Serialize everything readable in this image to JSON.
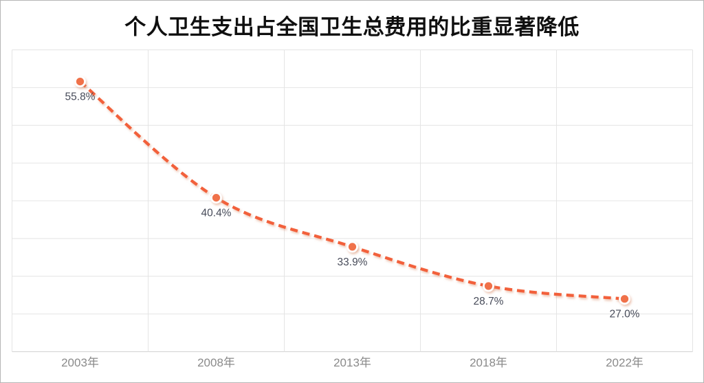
{
  "page": {
    "background": "#FFFFFF",
    "border_color": "#B5B5B5"
  },
  "chart_data": {
    "type": "line",
    "title": "个人卫生支出占全国卫生总费用的比重显著降低",
    "categories": [
      "2003年",
      "2008年",
      "2013年",
      "2018年",
      "2022年"
    ],
    "values": [
      55.8,
      40.4,
      33.9,
      28.7,
      27.0
    ],
    "data_labels": [
      "55.8%",
      "40.4%",
      "33.9%",
      "28.7%",
      "27.0%"
    ],
    "xlabel": "",
    "ylabel": "",
    "ylim": [
      20,
      60
    ],
    "y_step": 5,
    "y_tick_labels_visible": false,
    "grid": "on",
    "legend": "none",
    "line_style": "dashed",
    "smooth": true,
    "marker": "circle",
    "colors": {
      "line": "#F2613B",
      "marker_fill": "#F0714A",
      "marker_ring": "#FFFFFF",
      "shadow": "#D98A66",
      "data_label": "#474B59",
      "axis_label": "#8A8A8A",
      "gridline": "#E4E4E4",
      "axis_line": "#D2D2D2",
      "title": "#0F0F0F"
    }
  }
}
